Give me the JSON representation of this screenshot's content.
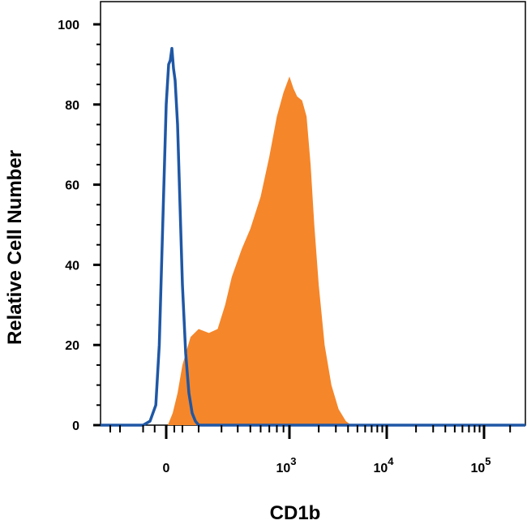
{
  "chart_data": {
    "type": "area",
    "xlabel": "CD1b",
    "ylabel": "Relative Cell Number",
    "ylim": [
      0,
      100
    ],
    "x_scale": "biexponential",
    "y_ticks": [
      "0",
      "20",
      "40",
      "60",
      "80",
      "100"
    ],
    "x_ticks": [
      {
        "value": 0,
        "base": "0",
        "exp": ""
      },
      {
        "value": 1000,
        "base": "10",
        "exp": "3"
      },
      {
        "value": 10000,
        "base": "10",
        "exp": "4"
      },
      {
        "value": 100000,
        "base": "10",
        "exp": "5"
      }
    ],
    "series": [
      {
        "style": "filled",
        "color": "#f5862a",
        "x": [
          10,
          20,
          40,
          70,
          100,
          150,
          200,
          240,
          280,
          320,
          360,
          430,
          500,
          600,
          700,
          800,
          900,
          1000,
          1100,
          1200,
          1350,
          1500,
          1650,
          1800,
          2000,
          2300,
          2700,
          3200,
          3800,
          4300,
          5000
        ],
        "y": [
          0,
          1,
          3,
          8,
          15,
          22,
          24,
          23,
          24,
          30,
          37,
          44,
          49,
          57,
          67,
          77,
          83,
          87,
          84,
          82,
          81,
          77,
          65,
          50,
          35,
          20,
          10,
          4,
          1,
          0,
          0
        ]
      },
      {
        "style": "outline",
        "color": "#1f57a5",
        "x": [
          -100,
          -70,
          -45,
          -30,
          -15,
          0,
          15,
          25,
          35,
          45,
          55,
          70,
          85,
          100,
          120,
          140,
          160,
          180,
          200
        ],
        "y": [
          0,
          1,
          5,
          20,
          50,
          80,
          90,
          91,
          94,
          89,
          86,
          75,
          55,
          35,
          18,
          8,
          3,
          1,
          0
        ]
      }
    ]
  }
}
